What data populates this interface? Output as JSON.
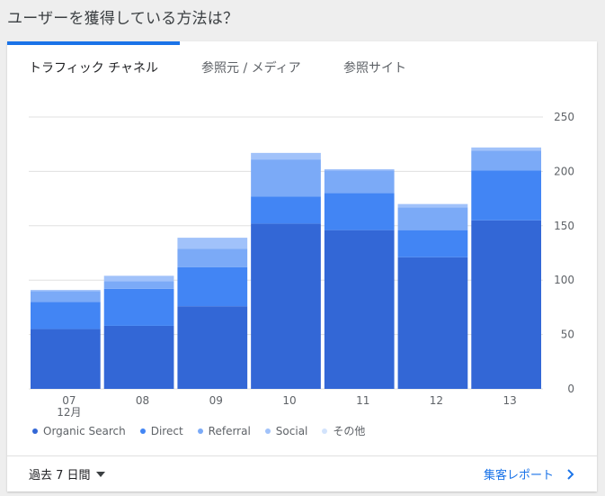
{
  "heading": "ユーザーを獲得している方法は？",
  "tabs": [
    {
      "label": "トラフィック チャネル"
    },
    {
      "label": "参照元 / メディア"
    },
    {
      "label": "参照サイト"
    }
  ],
  "footer": {
    "date_range": "過去 7 日間",
    "report_link": "集客レポート"
  },
  "chart_data": {
    "type": "bar",
    "stacked": true,
    "categories": [
      "07",
      "08",
      "09",
      "10",
      "11",
      "12",
      "13"
    ],
    "category_sublabels": [
      "12月",
      "",
      "",
      "",
      "",
      "",
      ""
    ],
    "ylim": [
      0,
      250
    ],
    "yticks": [
      0,
      50,
      100,
      150,
      200,
      250
    ],
    "y_axis_position": "right",
    "grid": true,
    "legend_position": "bottom-left",
    "series": [
      {
        "name": "Organic Search",
        "color": "#3367d6",
        "values": [
          55,
          58,
          76,
          152,
          146,
          121,
          155
        ]
      },
      {
        "name": "Direct",
        "color": "#4285f4",
        "values": [
          25,
          34,
          36,
          25,
          34,
          25,
          46
        ]
      },
      {
        "name": "Referral",
        "color": "#7baaf7",
        "values": [
          10,
          7,
          17,
          34,
          21,
          21,
          18
        ]
      },
      {
        "name": "Social",
        "color": "#a1c2fa",
        "values": [
          1,
          5,
          10,
          6,
          1,
          3,
          3
        ]
      },
      {
        "name": "その他",
        "color": "#d2e3fc",
        "values": [
          0,
          0,
          0,
          0,
          0,
          0,
          0
        ]
      }
    ]
  }
}
